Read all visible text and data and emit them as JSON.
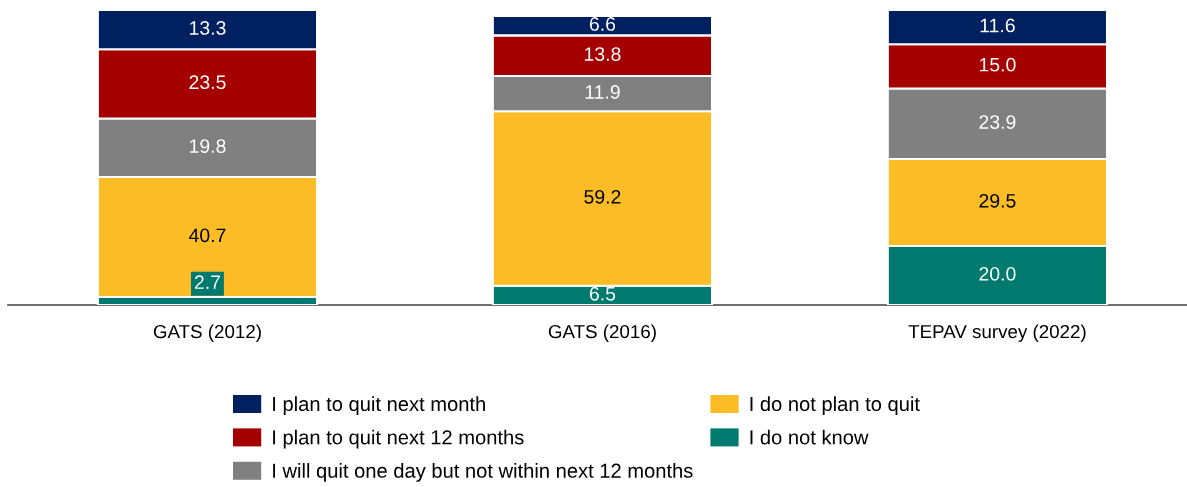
{
  "chart_data": {
    "type": "bar",
    "stacked": true,
    "legend": "bottom",
    "grid": false,
    "categories": [
      "GATS (2012)",
      "GATS (2016)",
      "TEPAV survey (2022)"
    ],
    "series": [
      {
        "name": "I do not know",
        "color": "#007a6e",
        "values": [
          2.7,
          6.5,
          20.0
        ],
        "value_labels": [
          "2.7",
          "6.5",
          "20.0"
        ]
      },
      {
        "name": "I do not plan to quit",
        "color": "#fbbc25",
        "values": [
          40.7,
          59.2,
          29.5
        ],
        "value_labels": [
          "40.7",
          "59.2",
          "29.5"
        ]
      },
      {
        "name": "I will quit one day but not within next 12 months",
        "color": "#808080",
        "values": [
          19.8,
          11.9,
          23.9
        ],
        "value_labels": [
          "19.8",
          "11.9",
          "23.9"
        ]
      },
      {
        "name": "I plan to quit next 12 months",
        "color": "#a50000",
        "values": [
          23.5,
          13.8,
          15.0
        ],
        "value_labels": [
          "23.5",
          "13.8",
          "15.0"
        ]
      },
      {
        "name": "I plan to quit next month",
        "color": "#002060",
        "values": [
          13.3,
          6.6,
          11.6
        ],
        "value_labels": [
          "13.3",
          "6.6",
          "11.6"
        ]
      }
    ]
  }
}
